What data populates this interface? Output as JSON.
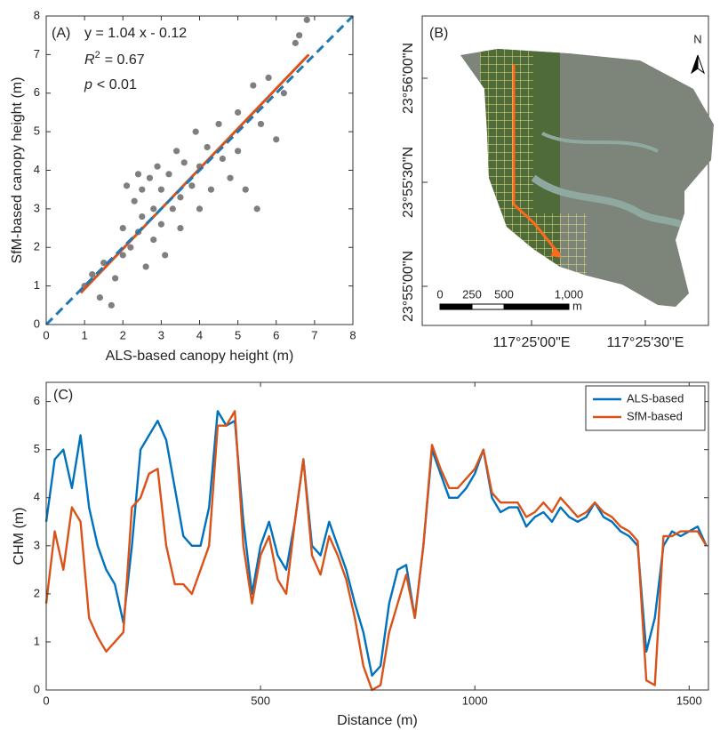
{
  "chart_data": [
    {
      "type": "scatter",
      "label": "(A)",
      "xlabel": "ALS-based canopy height (m)",
      "ylabel": "SfM-based canopy height (m)",
      "annotations": [
        [
          "y = 1.04 x - 0.12"
        ],
        [
          "R",
          "2",
          "= 0.67"
        ],
        [
          "p",
          "< 0.01"
        ]
      ],
      "xlim": [
        0,
        8
      ],
      "ylim": [
        0,
        8
      ],
      "xticks": [
        0,
        1,
        2,
        3,
        4,
        5,
        6,
        7,
        8
      ],
      "yticks": [
        0,
        1,
        2,
        3,
        4,
        5,
        6,
        7,
        8
      ],
      "color": "#7f7f7f",
      "x": [
        1,
        1.2,
        1.5,
        1.7,
        1.8,
        2,
        2,
        2.2,
        2.3,
        2.4,
        2.5,
        2.5,
        2.6,
        2.7,
        2.8,
        2.8,
        2.9,
        3,
        3,
        3.1,
        3.2,
        3.3,
        3.4,
        3.5,
        3.5,
        3.6,
        3.8,
        3.9,
        4,
        4,
        4.2,
        4.3,
        4.5,
        4.6,
        4.8,
        5,
        5,
        5.2,
        5.4,
        5.5,
        5.6,
        5.8,
        6,
        6.2,
        6.5,
        6.6,
        6.8,
        2.1,
        2.4,
        1.4
      ],
      "y": [
        1,
        1.3,
        1.6,
        0.5,
        1.2,
        2.5,
        1.8,
        2,
        3.2,
        2.4,
        3.5,
        2.8,
        1.5,
        3.8,
        3,
        2.2,
        4.1,
        3.5,
        2.6,
        1.8,
        3.9,
        3,
        4.5,
        3.3,
        2.5,
        4.2,
        3.6,
        5,
        4.1,
        3,
        4.6,
        3.5,
        5.2,
        4.3,
        3.8,
        5.5,
        4.5,
        3.5,
        6.2,
        3,
        5.2,
        6.4,
        4.8,
        6,
        7.3,
        7.5,
        7.9,
        3.6,
        3.9,
        0.7
      ],
      "fit": {
        "x": [
          0.9,
          6.85
        ],
        "y": [
          0.82,
          7.0
        ],
        "color": "#d95319"
      },
      "identity": {
        "x": [
          0,
          8
        ],
        "y": [
          0,
          8
        ],
        "color": "#1f77b4"
      }
    },
    {
      "type": "map",
      "label": "(B)",
      "north": "N",
      "lat_labels": [
        "23°56'00\"N",
        "23°55'30\"N",
        "23°55'00\"N"
      ],
      "lon_labels": [
        "117°25'00\"E",
        "117°25'30\"E"
      ],
      "scale_labels": [
        "0",
        "250",
        "500",
        "1,000"
      ],
      "scale_unit": "m"
    },
    {
      "type": "line",
      "label": "(C)",
      "xlabel": "Distance (m)",
      "ylabel": "CHM (m)",
      "xlim": [
        0,
        1545
      ],
      "ylim": [
        0,
        6.4
      ],
      "xticks": [
        0,
        500,
        1000,
        1500
      ],
      "yticks": [
        0,
        1,
        2,
        3,
        4,
        5,
        6
      ],
      "legend": "upper right",
      "x": [
        0,
        20,
        40,
        60,
        80,
        100,
        120,
        140,
        160,
        180,
        200,
        220,
        240,
        260,
        280,
        300,
        320,
        340,
        360,
        380,
        400,
        420,
        440,
        460,
        480,
        500,
        520,
        540,
        560,
        580,
        600,
        620,
        640,
        660,
        680,
        700,
        720,
        740,
        760,
        780,
        800,
        820,
        840,
        860,
        880,
        900,
        920,
        940,
        960,
        980,
        1000,
        1020,
        1040,
        1060,
        1080,
        1100,
        1120,
        1140,
        1160,
        1180,
        1200,
        1220,
        1240,
        1260,
        1280,
        1300,
        1320,
        1340,
        1360,
        1380,
        1400,
        1420,
        1440,
        1460,
        1480,
        1500,
        1520,
        1540
      ],
      "series": [
        {
          "name": "ALS-based",
          "color": "#0072bd",
          "values": [
            3.5,
            4.8,
            5.0,
            4.2,
            5.3,
            3.8,
            3.0,
            2.5,
            2.2,
            1.4,
            3.0,
            5.0,
            5.3,
            5.6,
            5.2,
            4.2,
            3.2,
            3.0,
            3.0,
            3.8,
            5.8,
            5.5,
            5.6,
            3.5,
            2.0,
            3.0,
            3.5,
            2.8,
            2.5,
            3.5,
            4.8,
            3.0,
            2.8,
            3.5,
            3.0,
            2.5,
            1.8,
            1.2,
            0.3,
            0.5,
            1.8,
            2.5,
            2.6,
            1.5,
            3.0,
            5.0,
            4.5,
            4.0,
            4.0,
            4.2,
            4.5,
            5.0,
            4.0,
            3.7,
            3.8,
            3.8,
            3.4,
            3.6,
            3.7,
            3.5,
            3.8,
            3.6,
            3.5,
            3.6,
            3.9,
            3.6,
            3.5,
            3.3,
            3.2,
            3.0,
            0.8,
            1.5,
            3.0,
            3.3,
            3.2,
            3.3,
            3.4,
            3.0
          ]
        },
        {
          "name": "SfM-based",
          "color": "#d95319",
          "values": [
            1.8,
            3.3,
            2.5,
            3.8,
            3.5,
            1.5,
            1.1,
            0.8,
            1.0,
            1.2,
            3.8,
            4.0,
            4.5,
            4.6,
            3.0,
            2.2,
            2.2,
            2.0,
            2.5,
            3.0,
            5.5,
            5.5,
            5.8,
            3.0,
            1.8,
            2.8,
            3.2,
            2.3,
            2.0,
            3.5,
            4.8,
            2.8,
            2.4,
            3.2,
            2.8,
            2.3,
            1.5,
            0.5,
            0.0,
            0.1,
            1.2,
            1.8,
            2.4,
            1.5,
            3.0,
            5.1,
            4.6,
            4.2,
            4.2,
            4.4,
            4.6,
            5.0,
            4.1,
            3.9,
            3.9,
            3.9,
            3.6,
            3.7,
            3.9,
            3.7,
            4.0,
            3.8,
            3.6,
            3.7,
            3.9,
            3.7,
            3.6,
            3.4,
            3.3,
            3.1,
            0.2,
            0.1,
            3.2,
            3.2,
            3.3,
            3.3,
            3.3,
            3.0
          ]
        }
      ]
    }
  ]
}
